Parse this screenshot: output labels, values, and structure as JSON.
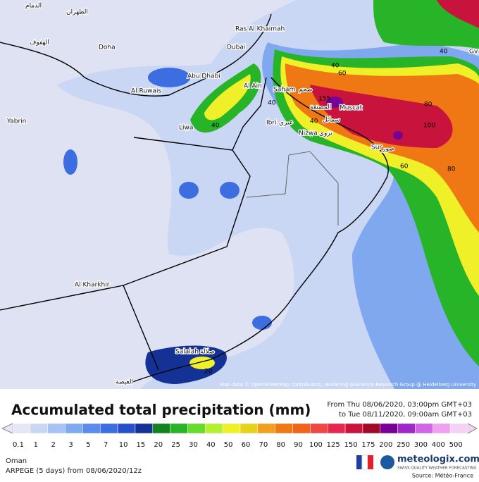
{
  "map": {
    "cities": [
      "Doha",
      "Dubai",
      "Ras Al Khaimah",
      "Abu Dhabi",
      "Al Ruwais",
      "Al Ain",
      "Liwa",
      "Saham",
      "صحم",
      "Muscat",
      "Ibri",
      "عبري",
      "Nizwa",
      "نزوى",
      "Sur",
      "صور",
      "Salalah",
      "صلالة",
      "Al Kharkhir",
      "Yabrin",
      "Gv",
      "الدمام",
      "الظهران",
      "الهفوف",
      "الغيضة",
      "المصنعة",
      "سمائل"
    ],
    "contours": [
      "40",
      "60",
      "80",
      "100",
      "80",
      "60",
      "40",
      "40",
      "40",
      "20",
      "40",
      "155"
    ],
    "attribution": "Map data © OpenStreetMap contributors, rendering GIScience Research Group @ Heidelberg University"
  },
  "footer": {
    "title": "Accumulated total precipitation (mm)",
    "from": "From Thu 08/06/2020, 03:00pm GMT+03",
    "to": "to Tue 08/11/2020, 09:00am GMT+03",
    "legend": [
      {
        "label": "0.1",
        "color": "#e6e6f5"
      },
      {
        "label": "1",
        "color": "#c8d7f5"
      },
      {
        "label": "2",
        "color": "#a5c3f5"
      },
      {
        "label": "3",
        "color": "#7faaf0"
      },
      {
        "label": "5",
        "color": "#5a8ceb"
      },
      {
        "label": "7",
        "color": "#3c6ee1"
      },
      {
        "label": "10",
        "color": "#2850c8"
      },
      {
        "label": "15",
        "color": "#143296"
      },
      {
        "label": "20",
        "color": "#14821e"
      },
      {
        "label": "25",
        "color": "#28b428"
      },
      {
        "label": "30",
        "color": "#64dc28"
      },
      {
        "label": "40",
        "color": "#b4f032"
      },
      {
        "label": "50",
        "color": "#f0f028"
      },
      {
        "label": "60",
        "color": "#e6d21e"
      },
      {
        "label": "70",
        "color": "#f0a01e"
      },
      {
        "label": "80",
        "color": "#f07814"
      },
      {
        "label": "90",
        "color": "#f0641e"
      },
      {
        "label": "100",
        "color": "#ef4646"
      },
      {
        "label": "125",
        "color": "#e62850"
      },
      {
        "label": "150",
        "color": "#c8143c"
      },
      {
        "label": "175",
        "color": "#a00a28"
      },
      {
        "label": "200",
        "color": "#780096"
      },
      {
        "label": "250",
        "color": "#a028c8"
      },
      {
        "label": "300",
        "color": "#d264e6"
      },
      {
        "label": "400",
        "color": "#f0a0f0"
      },
      {
        "label": "500",
        "color": "#f5d2f5"
      }
    ],
    "region": "Oman",
    "model": "ARPEGE (5 days)  from  08/06/2020/12z",
    "brand": "meteologix.com",
    "tagline": "SWISS QUALITY WEATHER FORECASTING",
    "source": "Source: Météo-France"
  }
}
